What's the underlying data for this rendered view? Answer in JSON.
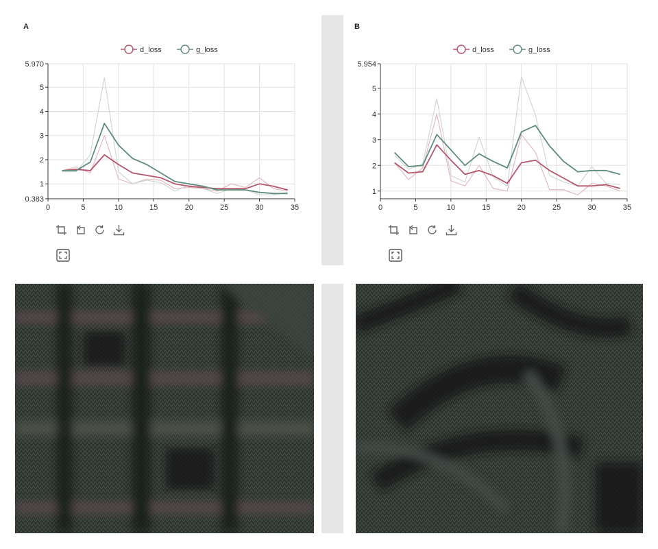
{
  "panels": {
    "a": {
      "label": "A"
    },
    "b": {
      "label": "B"
    }
  },
  "toolbar_icons": [
    "zoom-icon",
    "zoom-reset-icon",
    "refresh-icon",
    "download-icon"
  ],
  "expand_icon": "fullscreen-icon",
  "textures": {
    "a": {
      "pattern": "grid",
      "colors": [
        "#2c332d",
        "#3c4440",
        "#1c221c"
      ]
    },
    "b": {
      "pattern": "diagonal-stripes",
      "colors": [
        "#2c332d",
        "#3e4642",
        "#181d19"
      ]
    }
  },
  "chart_data": [
    {
      "type": "line",
      "xlim": [
        0,
        35
      ],
      "ylim": [
        0.383,
        5.97
      ],
      "xticks": [
        0,
        5,
        10,
        15,
        20,
        25,
        30,
        35
      ],
      "yticks": [
        "0.383",
        "1",
        "2",
        "3",
        "4",
        "5",
        "5.970"
      ],
      "grid": true,
      "legend_position": "top-center",
      "series": [
        {
          "name": "d_loss",
          "color": "#b5546a",
          "smoothed": true,
          "x": [
            2,
            4,
            6,
            8,
            10,
            12,
            14,
            16,
            18,
            20,
            22,
            24,
            26,
            28,
            30,
            32,
            34
          ],
          "y": [
            1.55,
            1.6,
            1.55,
            2.2,
            1.8,
            1.45,
            1.35,
            1.25,
            1.0,
            0.9,
            0.85,
            0.8,
            0.8,
            0.8,
            1.0,
            0.9,
            0.75
          ]
        },
        {
          "name": "g_loss",
          "color": "#5e8c7c",
          "smoothed": true,
          "x": [
            2,
            4,
            6,
            8,
            10,
            12,
            14,
            16,
            18,
            20,
            22,
            24,
            26,
            28,
            30,
            32,
            34
          ],
          "y": [
            1.55,
            1.55,
            1.9,
            3.5,
            2.6,
            2.05,
            1.8,
            1.45,
            1.1,
            1.0,
            0.9,
            0.75,
            0.75,
            0.75,
            0.65,
            0.6,
            0.6
          ]
        },
        {
          "name": "d_loss raw",
          "color": "#e3b9c2",
          "raw": true,
          "x": [
            2,
            4,
            6,
            8,
            10,
            12,
            14,
            16,
            18,
            20,
            22,
            24,
            26,
            28,
            30,
            32,
            34
          ],
          "y": [
            1.55,
            1.7,
            1.45,
            3.0,
            1.2,
            1.0,
            1.2,
            1.15,
            0.8,
            0.85,
            0.8,
            0.7,
            1.0,
            0.85,
            1.25,
            0.8,
            0.7
          ]
        },
        {
          "name": "g_loss raw",
          "color": "#cfd8d4",
          "raw": true,
          "x": [
            2,
            4,
            6,
            8,
            10,
            12,
            14,
            16,
            18,
            20,
            22,
            24,
            26,
            28,
            30,
            32,
            34
          ],
          "y": [
            1.5,
            1.5,
            2.2,
            5.4,
            1.5,
            1.0,
            1.15,
            1.05,
            0.7,
            0.95,
            0.8,
            0.6,
            0.8,
            0.75,
            0.55,
            0.55,
            0.65
          ]
        }
      ]
    },
    {
      "type": "line",
      "xlim": [
        0,
        35
      ],
      "ylim": [
        0.7,
        5.954
      ],
      "xticks": [
        0,
        5,
        10,
        15,
        20,
        25,
        30,
        35
      ],
      "yticks": [
        "1",
        "2",
        "3",
        "4",
        "5",
        "5.954"
      ],
      "grid": true,
      "legend_position": "top-center",
      "series": [
        {
          "name": "d_loss",
          "color": "#b5546a",
          "smoothed": true,
          "x": [
            2,
            4,
            6,
            8,
            10,
            12,
            14,
            16,
            18,
            20,
            22,
            24,
            26,
            28,
            30,
            32,
            34
          ],
          "y": [
            2.1,
            1.7,
            1.75,
            2.8,
            2.2,
            1.65,
            1.8,
            1.6,
            1.3,
            2.1,
            2.2,
            1.8,
            1.5,
            1.2,
            1.2,
            1.25,
            1.1
          ]
        },
        {
          "name": "g_loss",
          "color": "#5e8c7c",
          "smoothed": true,
          "x": [
            2,
            4,
            6,
            8,
            10,
            12,
            14,
            16,
            18,
            20,
            22,
            24,
            26,
            28,
            30,
            32,
            34
          ],
          "y": [
            2.5,
            1.95,
            2.0,
            3.2,
            2.6,
            2.0,
            2.45,
            2.15,
            1.9,
            3.3,
            3.55,
            2.75,
            2.15,
            1.75,
            1.8,
            1.8,
            1.65
          ]
        },
        {
          "name": "d_loss raw",
          "color": "#e3b9c2",
          "raw": true,
          "x": [
            2,
            4,
            6,
            8,
            10,
            12,
            14,
            16,
            18,
            20,
            22,
            24,
            26,
            28,
            30,
            32,
            34
          ],
          "y": [
            2.1,
            1.45,
            1.9,
            4.0,
            1.4,
            1.2,
            2.0,
            1.1,
            1.0,
            3.2,
            2.5,
            1.05,
            1.05,
            0.85,
            1.3,
            1.2,
            1.0
          ]
        },
        {
          "name": "g_loss raw",
          "color": "#cfd8d4",
          "raw": true,
          "x": [
            2,
            4,
            6,
            8,
            10,
            12,
            14,
            16,
            18,
            20,
            22,
            24,
            26,
            28,
            30,
            32,
            34
          ],
          "y": [
            2.4,
            1.85,
            2.05,
            4.6,
            1.6,
            1.35,
            3.1,
            1.55,
            1.2,
            5.45,
            3.95,
            1.6,
            1.35,
            1.2,
            1.95,
            1.3,
            1.25
          ]
        }
      ]
    }
  ]
}
